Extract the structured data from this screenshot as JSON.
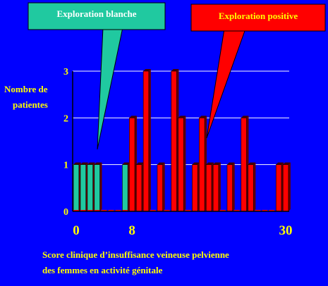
{
  "chart_data": {
    "type": "bar",
    "ylabel_line1": "Nombre de",
    "ylabel_line2": "patientes",
    "xlabel_line1": "Score clinique d’insuffisance veineuse pelvienne",
    "xlabel_line2": "des femmes en activité génitale",
    "x_tick_labels": [
      {
        "x": 0,
        "label": "0"
      },
      {
        "x": 8,
        "label": "8"
      },
      {
        "x": 30,
        "label": "30"
      }
    ],
    "y_ticks": [
      0,
      1,
      2,
      3
    ],
    "ylim": [
      0,
      3
    ],
    "xlim": [
      -0.5,
      30.5
    ],
    "grid": true,
    "series": [
      {
        "name": "Exploration blanche",
        "color": "#20c9a0",
        "values": [
          1,
          1,
          1,
          1,
          0,
          0,
          0,
          1,
          0,
          0,
          0,
          0,
          0,
          0,
          0,
          0,
          0,
          0,
          0,
          0,
          0,
          0,
          0,
          0,
          0,
          0,
          0,
          0,
          0,
          0,
          0
        ]
      },
      {
        "name": "Exploration positive",
        "color": "#ff0000",
        "values": [
          0,
          0,
          0,
          0,
          0,
          0,
          0,
          0,
          2,
          1,
          3,
          0,
          1,
          0,
          3,
          2,
          0,
          1,
          2,
          1,
          1,
          0,
          1,
          0,
          2,
          1,
          0,
          0,
          0,
          1,
          1
        ]
      }
    ],
    "callouts": [
      {
        "label": "Exploration blanche",
        "color": "#20c9a0"
      },
      {
        "label": "Exploration positive",
        "color": "#ff0000"
      }
    ]
  }
}
